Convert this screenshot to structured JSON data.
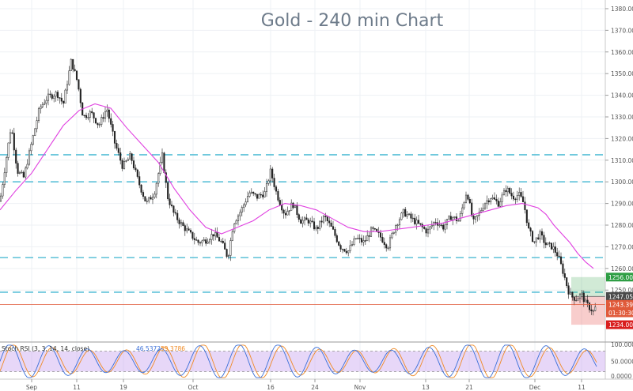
{
  "chart_data": {
    "type": "candlestick",
    "title": "Gold - 240 min Chart",
    "ylim": [
      1226,
      1384
    ],
    "y_ticks": [
      1380,
      1370,
      1360,
      1350,
      1340,
      1330,
      1320,
      1310,
      1300,
      1290,
      1280,
      1270,
      1260,
      1250
    ],
    "x_tick_labels": [
      "Sep",
      "11",
      "19",
      "Oct",
      "16",
      "24",
      "Nov",
      "13",
      "21",
      "Dec",
      "11"
    ],
    "horizontal_levels": [
      1312.5,
      1300,
      1265,
      1249
    ],
    "price_lines": [
      {
        "label": "1256.00",
        "value": 1256.0,
        "color": "#2e9e44"
      },
      {
        "label": "1247.05",
        "value": 1247.05,
        "color": "#4a4a4a"
      },
      {
        "label": "1243.39",
        "value": 1243.39,
        "color": "#e05a3a"
      },
      {
        "label": "01:30:30",
        "value": 1239.5,
        "color": "#e05a3a"
      },
      {
        "label": "1234.00",
        "value": 1234.0,
        "color": "#d91e1e"
      }
    ],
    "price_path": [
      [
        0,
        1291
      ],
      [
        14,
        1326
      ],
      [
        22,
        1305
      ],
      [
        30,
        1302
      ],
      [
        40,
        1318
      ],
      [
        50,
        1334
      ],
      [
        60,
        1339
      ],
      [
        72,
        1341
      ],
      [
        80,
        1336
      ],
      [
        90,
        1356
      ],
      [
        98,
        1346
      ],
      [
        105,
        1330
      ],
      [
        115,
        1332
      ],
      [
        125,
        1326
      ],
      [
        135,
        1334
      ],
      [
        145,
        1318
      ],
      [
        155,
        1307
      ],
      [
        165,
        1312
      ],
      [
        175,
        1300
      ],
      [
        185,
        1290
      ],
      [
        195,
        1295
      ],
      [
        205,
        1312
      ],
      [
        212,
        1293
      ],
      [
        220,
        1285
      ],
      [
        230,
        1280
      ],
      [
        240,
        1276
      ],
      [
        250,
        1272
      ],
      [
        260,
        1273
      ],
      [
        270,
        1276
      ],
      [
        280,
        1272
      ],
      [
        288,
        1265
      ],
      [
        295,
        1281
      ],
      [
        305,
        1287
      ],
      [
        315,
        1295
      ],
      [
        325,
        1293
      ],
      [
        335,
        1295
      ],
      [
        342,
        1305
      ],
      [
        350,
        1294
      ],
      [
        360,
        1285
      ],
      [
        370,
        1290
      ],
      [
        380,
        1282
      ],
      [
        390,
        1282
      ],
      [
        400,
        1278
      ],
      [
        410,
        1284
      ],
      [
        420,
        1278
      ],
      [
        430,
        1270
      ],
      [
        440,
        1268
      ],
      [
        450,
        1274
      ],
      [
        460,
        1272
      ],
      [
        470,
        1278
      ],
      [
        480,
        1275
      ],
      [
        490,
        1270
      ],
      [
        500,
        1280
      ],
      [
        510,
        1286
      ],
      [
        520,
        1283
      ],
      [
        530,
        1280
      ],
      [
        540,
        1277
      ],
      [
        550,
        1282
      ],
      [
        560,
        1279
      ],
      [
        570,
        1284
      ],
      [
        580,
        1282
      ],
      [
        590,
        1296
      ],
      [
        598,
        1281
      ],
      [
        605,
        1285
      ],
      [
        612,
        1290
      ],
      [
        620,
        1293
      ],
      [
        630,
        1290
      ],
      [
        640,
        1297
      ],
      [
        648,
        1293
      ],
      [
        656,
        1294
      ],
      [
        662,
        1290
      ],
      [
        668,
        1278
      ],
      [
        675,
        1272
      ],
      [
        682,
        1276
      ],
      [
        690,
        1271
      ],
      [
        698,
        1270
      ],
      [
        705,
        1266
      ],
      [
        712,
        1258
      ],
      [
        718,
        1250
      ],
      [
        722,
        1247
      ],
      [
        728,
        1246
      ],
      [
        735,
        1248
      ],
      [
        740,
        1244
      ],
      [
        745,
        1242
      ],
      [
        750,
        1240
      ],
      [
        754,
        1243
      ]
    ],
    "moving_average": [
      [
        0,
        1287
      ],
      [
        20,
        1296
      ],
      [
        40,
        1304
      ],
      [
        60,
        1315
      ],
      [
        80,
        1326
      ],
      [
        100,
        1333
      ],
      [
        120,
        1336
      ],
      [
        140,
        1334
      ],
      [
        160,
        1325
      ],
      [
        180,
        1317
      ],
      [
        200,
        1309
      ],
      [
        220,
        1297
      ],
      [
        240,
        1287
      ],
      [
        260,
        1279
      ],
      [
        280,
        1276
      ],
      [
        300,
        1279
      ],
      [
        320,
        1282
      ],
      [
        340,
        1287
      ],
      [
        360,
        1290
      ],
      [
        380,
        1289
      ],
      [
        400,
        1287
      ],
      [
        420,
        1283
      ],
      [
        440,
        1279
      ],
      [
        460,
        1277
      ],
      [
        480,
        1277
      ],
      [
        500,
        1278
      ],
      [
        520,
        1279
      ],
      [
        540,
        1280
      ],
      [
        560,
        1281
      ],
      [
        580,
        1283
      ],
      [
        600,
        1285
      ],
      [
        620,
        1287
      ],
      [
        640,
        1289
      ],
      [
        660,
        1290
      ],
      [
        670,
        1289
      ],
      [
        680,
        1288
      ],
      [
        690,
        1285
      ],
      [
        700,
        1280
      ],
      [
        710,
        1276
      ],
      [
        720,
        1272
      ],
      [
        730,
        1267
      ],
      [
        740,
        1263
      ],
      [
        750,
        1260
      ]
    ],
    "target_zone": {
      "x_start": 722,
      "x_end": 765,
      "upper": 1256,
      "entry": 1247.05,
      "lower": 1234
    },
    "current_price": 1243.39,
    "indicator": {
      "name": "Stoch RSI (3, 3, 14, 14, close)",
      "k_label": "46.5372",
      "d_label": "59.3786",
      "levels": [
        "100.0000",
        "50.0000",
        "0.0000"
      ],
      "overbought": 80,
      "oversold": 20,
      "k_color": "#3a6fd8",
      "d_color": "#f08a24"
    }
  }
}
